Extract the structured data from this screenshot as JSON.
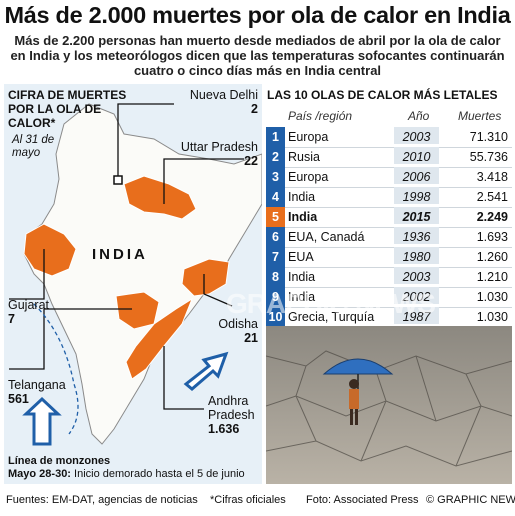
{
  "title": "Más de 2.000 muertes por ola de calor en India",
  "subtitle": "Más de 2.200 personas han muerto desde mediados de abril por la ola de calor en India y los meteorólogos dicen que las temperaturas sofocantes continuarán cuatro o cinco días más en India central",
  "map": {
    "heading": "Cifra de Muertes por la Ola de Calor*",
    "date_note": "Al 31 de mayo",
    "country_label": "INDIA",
    "regions": [
      {
        "name": "Nueva Delhi",
        "deaths": "2"
      },
      {
        "name": "Uttar Pradesh",
        "deaths": "22"
      },
      {
        "name": "Gujarat",
        "deaths": "7"
      },
      {
        "name": "Odisha",
        "deaths": "21"
      },
      {
        "name": "Telangana",
        "deaths": "561"
      },
      {
        "name": "Andhra Pradesh",
        "deaths": "1.636"
      }
    ],
    "monsoon_title": "Línea de monzones",
    "monsoon_date": "Mayo 28-30:",
    "monsoon_note": "Inicio demorado hasta el 5 de junio"
  },
  "table": {
    "title": "Las 10 Olas de Calor Más Letales",
    "headers": {
      "country": "País /región",
      "year": "Año",
      "deaths": "Muertes"
    },
    "rows": [
      {
        "rank": "1",
        "country": "Europa",
        "year": "2003",
        "deaths": "71.310"
      },
      {
        "rank": "2",
        "country": "Rusia",
        "year": "2010",
        "deaths": "55.736"
      },
      {
        "rank": "3",
        "country": "Europa",
        "year": "2006",
        "deaths": "3.418"
      },
      {
        "rank": "4",
        "country": "India",
        "year": "1998",
        "deaths": "2.541"
      },
      {
        "rank": "5",
        "country": "India",
        "year": "2015",
        "deaths": "2.249"
      },
      {
        "rank": "6",
        "country": "EUA, Canadá",
        "year": "1936",
        "deaths": "1.693"
      },
      {
        "rank": "7",
        "country": "EUA",
        "year": "1980",
        "deaths": "1.260"
      },
      {
        "rank": "8",
        "country": "India",
        "year": "2003",
        "deaths": "1.210"
      },
      {
        "rank": "9",
        "country": "India",
        "year": "2002",
        "deaths": "1.030"
      },
      {
        "rank": "10",
        "country": "Grecia, Turquía",
        "year": "1987",
        "deaths": "1.030"
      }
    ],
    "highlight_rank": "5"
  },
  "watermark": "GRAPHIC NEWS",
  "footer": {
    "sources": "Fuentes: EM-DAT, agencias de noticias",
    "official": "*Cifras oficiales",
    "photo": "Foto: Associated Press",
    "credit": "© GRAPHIC NEWS"
  },
  "colors": {
    "accent": "#e86e1c",
    "rank_blue": "#1f5fa8",
    "sea": "#e7f0f7"
  }
}
